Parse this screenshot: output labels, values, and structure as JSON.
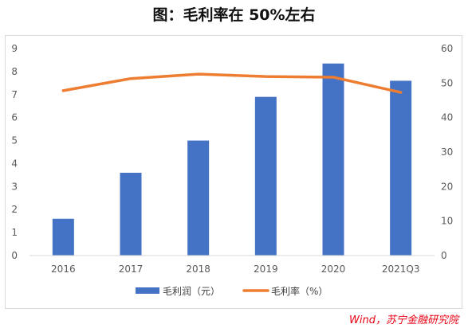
{
  "chart_data": {
    "type": "bar+line",
    "title": "图：毛利率在 50%左右",
    "categories": [
      "2016",
      "2017",
      "2018",
      "2019",
      "2020",
      "2021Q3"
    ],
    "series": [
      {
        "name": "毛利润（元）",
        "type": "bar",
        "axis": "left",
        "color": "#4472c4",
        "values": [
          1.6,
          3.6,
          5.0,
          6.9,
          8.35,
          7.6
        ]
      },
      {
        "name": "毛利率（%）",
        "type": "line",
        "axis": "right",
        "color": "#ed7d31",
        "values": [
          47.8,
          51.3,
          52.6,
          51.9,
          51.7,
          47.3
        ]
      }
    ],
    "y_left": {
      "lim": [
        0,
        9
      ],
      "ticks": [
        "0",
        "1",
        "2",
        "3",
        "4",
        "5",
        "6",
        "7",
        "8",
        "9"
      ]
    },
    "y_right": {
      "lim": [
        0,
        60
      ],
      "ticks": [
        "0",
        "10",
        "20",
        "30",
        "40",
        "50",
        "60"
      ]
    },
    "grid": false,
    "legend_position": "bottom"
  },
  "source": "Wind，苏宁金融研究院"
}
